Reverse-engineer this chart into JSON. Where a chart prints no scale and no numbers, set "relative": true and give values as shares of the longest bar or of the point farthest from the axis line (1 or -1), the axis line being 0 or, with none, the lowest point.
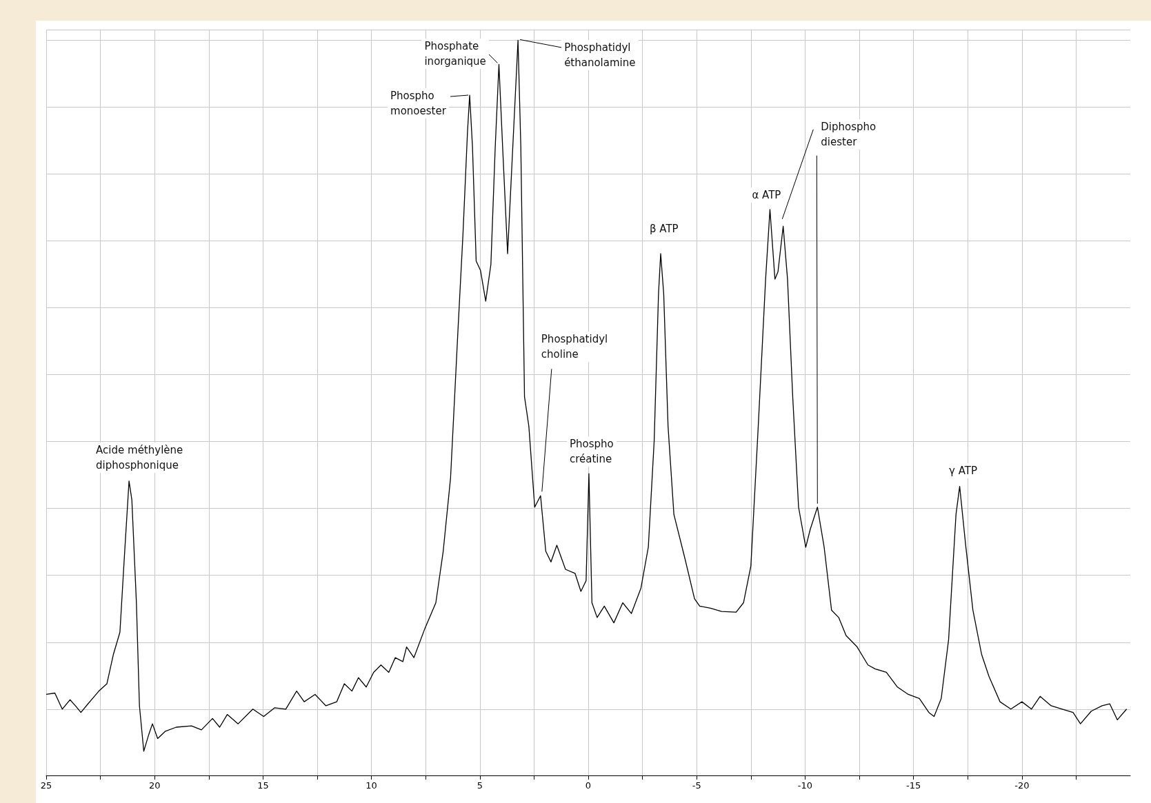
{
  "chart_data": {
    "type": "line",
    "relative": true,
    "color": "#000000",
    "grid": true,
    "marker": "none",
    "line_style": "solid",
    "xlim": [
      25,
      -25
    ],
    "xticks": [
      25,
      {
        "value": 22.5,
        "label": null
      },
      20,
      {
        "value": 17.5,
        "label": null
      },
      15,
      {
        "value": 12.5,
        "label": null
      },
      10,
      {
        "value": 7.5,
        "label": null
      },
      5,
      {
        "value": 2.5,
        "label": null
      },
      0,
      {
        "value": -2.5,
        "label": null
      },
      -5,
      {
        "value": -7.5,
        "label": null
      },
      -10,
      {
        "value": -12.5,
        "label": null
      },
      -15,
      {
        "value": -17.5,
        "label": null
      },
      -20,
      {
        "value": -22.5,
        "label": null
      }
    ],
    "x": [
      25,
      24.6,
      24.26,
      23.9,
      23.6,
      23.4,
      23.07,
      22.57,
      22.2,
      21.9,
      21.6,
      21.4,
      21.18,
      21.05,
      20.84,
      20.7,
      20.5,
      20.27,
      20.1,
      19.86,
      19.5,
      19.0,
      18.3,
      17.84,
      17.33,
      17.0,
      16.65,
      16.15,
      15.47,
      14.97,
      14.46,
      13.95,
      13.45,
      13.1,
      12.6,
      12.1,
      11.6,
      11.25,
      10.9,
      10.6,
      10.24,
      9.9,
      9.56,
      9.2,
      8.9,
      8.55,
      8.38,
      8.04,
      7.53,
      7.03,
      6.69,
      6.35,
      6.01,
      5.78,
      5.57,
      5.47,
      5.34,
      5.17,
      4.97,
      4.73,
      4.49,
      4.29,
      4.12,
      3.95,
      3.72,
      3.48,
      3.24,
      3.11,
      2.94,
      2.74,
      2.47,
      2.2,
      1.96,
      1.72,
      1.45,
      1.05,
      0.61,
      0.34,
      0.1,
      -0.03,
      -0.17,
      -0.41,
      -0.74,
      -1.18,
      -1.59,
      -1.99,
      -2.43,
      -2.77,
      -3.04,
      -3.24,
      -3.34,
      -3.48,
      -3.68,
      -3.95,
      -4.46,
      -4.9,
      -5.14,
      -5.64,
      -6.15,
      -6.82,
      -7.16,
      -7.5,
      -7.84,
      -8.18,
      -8.38,
      -8.61,
      -8.75,
      -8.99,
      -9.19,
      -9.43,
      -9.7,
      -10.03,
      -10.24,
      -10.57,
      -10.88,
      -11.22,
      -11.55,
      -11.89,
      -12.4,
      -12.9,
      -13.24,
      -13.75,
      -14.26,
      -14.76,
      -15.27,
      -15.71,
      -15.95,
      -16.28,
      -16.62,
      -16.96,
      -17.13,
      -17.4,
      -17.74,
      -18.14,
      -18.48,
      -18.99,
      -19.49,
      -20.0,
      -20.44,
      -20.84,
      -21.35,
      -21.86,
      -22.36,
      -22.7,
      -23.2,
      -23.7,
      -24.05,
      -24.4,
      -24.83
    ],
    "values": [
      0.022,
      0.024,
      0,
      0.014,
      0.003,
      -0.005,
      0.008,
      0.027,
      0.038,
      0.082,
      0.115,
      0.225,
      0.341,
      0.313,
      0.159,
      0.005,
      -0.063,
      -0.038,
      -0.022,
      -0.044,
      -0.033,
      -0.027,
      -0.025,
      -0.031,
      -0.014,
      -0.027,
      -0.008,
      -0.022,
      0,
      -0.011,
      0.002,
      0,
      0.027,
      0.011,
      0.022,
      0.005,
      0.011,
      0.038,
      0.027,
      0.047,
      0.033,
      0.055,
      0.066,
      0.055,
      0.077,
      0.071,
      0.093,
      0.077,
      0.121,
      0.159,
      0.236,
      0.346,
      0.566,
      0.709,
      0.863,
      0.918,
      0.841,
      0.67,
      0.656,
      0.61,
      0.665,
      0.841,
      0.964,
      0.841,
      0.681,
      0.841,
      1.0,
      0.841,
      0.467,
      0.423,
      0.302,
      0.319,
      0.236,
      0.22,
      0.245,
      0.209,
      0.203,
      0.176,
      0.192,
      0.352,
      0.159,
      0.137,
      0.154,
      0.129,
      0.159,
      0.143,
      0.181,
      0.242,
      0.401,
      0.621,
      0.681,
      0.621,
      0.423,
      0.291,
      0.225,
      0.165,
      0.154,
      0.151,
      0.146,
      0.145,
      0.159,
      0.214,
      0.423,
      0.643,
      0.747,
      0.643,
      0.654,
      0.722,
      0.643,
      0.467,
      0.302,
      0.242,
      0.269,
      0.302,
      0.242,
      0.148,
      0.137,
      0.11,
      0.093,
      0.066,
      0.06,
      0.055,
      0.033,
      0.022,
      0.016,
      -0.005,
      -0.011,
      0.016,
      0.104,
      0.291,
      0.333,
      0.247,
      0.148,
      0.082,
      0.049,
      0.011,
      0,
      0.011,
      0,
      0.019,
      0.005,
      0,
      -0.005,
      -0.022,
      -0.003,
      0.005,
      0.008,
      -0.016,
      0
    ],
    "annotations": [
      {
        "text": "Acide méthylène\ndiphosphonique",
        "x": 21.18,
        "y": 0.341
      },
      {
        "text": "Phospho\nmonoester",
        "x": 5.47,
        "y": 0.918
      },
      {
        "text": "Phosphate\ninorganique",
        "x": 4.12,
        "y": 0.964
      },
      {
        "text": "Phosphatidyl\néthanolamine",
        "x": 3.24,
        "y": 1.0
      },
      {
        "text": "Phosphatidyl\ncholine",
        "x": 2.2,
        "y": 0.319
      },
      {
        "text": "Phospho\ncréatine",
        "x": -0.03,
        "y": 0.352
      },
      {
        "text": "β ATP",
        "x": -3.34,
        "y": 0.681
      },
      {
        "text": "α ATP",
        "x": -8.38,
        "y": 0.747
      },
      {
        "text": "Diphospho\ndiester",
        "x": -10.57,
        "y": 0.302
      },
      {
        "text": "γ ATP",
        "x": -17.13,
        "y": 0.333
      }
    ]
  }
}
